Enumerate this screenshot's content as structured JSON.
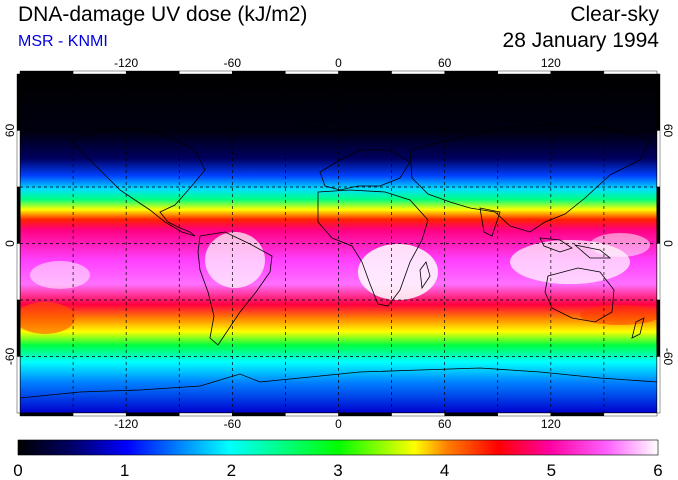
{
  "header": {
    "title": "DNA-damage UV dose (kJ/m2)",
    "subtitle": "MSR - KNMI",
    "condition": "Clear-sky",
    "date": "28 January 1994"
  },
  "axes": {
    "lon_ticks": [
      "-120",
      "-60",
      "0",
      "60",
      "120"
    ],
    "lat_ticks": [
      "60",
      "0",
      "-60"
    ],
    "lon_values": [
      -120,
      -60,
      0,
      60,
      120
    ],
    "lat_values": [
      60,
      0,
      -60
    ],
    "lon_range": [
      -180,
      180
    ],
    "lat_range": [
      -90,
      90
    ]
  },
  "colorbar": {
    "labels": [
      "0",
      "1",
      "2",
      "3",
      "4",
      "5",
      "6"
    ],
    "min": 0,
    "max": 6,
    "colors": [
      "#000000",
      "#0000ff",
      "#00ffff",
      "#00ff00",
      "#ffff00",
      "#ff0000",
      "#ff00ff",
      "#ffffff"
    ]
  }
}
